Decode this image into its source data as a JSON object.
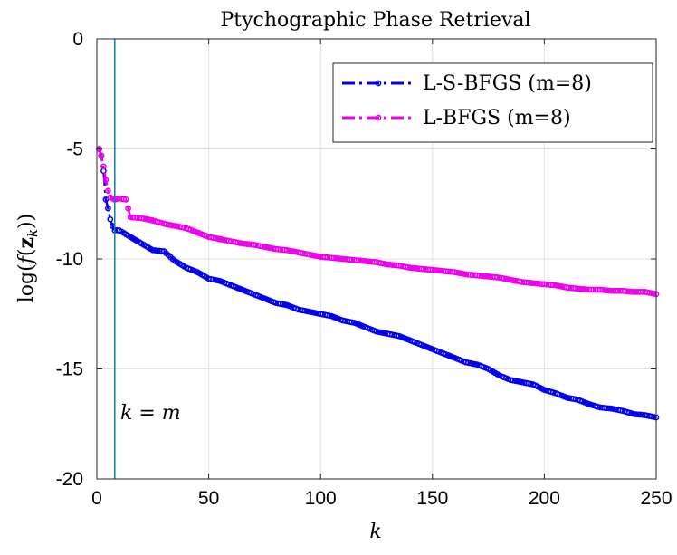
{
  "chart_data": {
    "type": "line",
    "title": "Ptychographic Phase Retrieval",
    "xlabel": "k",
    "ylabel_parts": [
      "log(",
      "f",
      "(",
      "z",
      "k",
      "))"
    ],
    "xlim": [
      0,
      250
    ],
    "ylim": [
      -20,
      0
    ],
    "x_ticks": [
      {
        "value": 0,
        "label": "0"
      },
      {
        "value": 50,
        "label": "50"
      },
      {
        "value": 100,
        "label": "100"
      },
      {
        "value": 150,
        "label": "150"
      },
      {
        "value": 200,
        "label": "200"
      },
      {
        "value": 250,
        "label": "250"
      }
    ],
    "y_ticks": [
      {
        "value": 0,
        "label": "0"
      },
      {
        "value": -5,
        "label": "-5"
      },
      {
        "value": -10,
        "label": "-10"
      },
      {
        "value": -15,
        "label": "-15"
      },
      {
        "value": -20,
        "label": "-20"
      }
    ],
    "grid": true,
    "legend_position": "top-right",
    "vertical_line": {
      "x": 8,
      "label_parts": [
        "k",
        " = ",
        "m"
      ],
      "color": "#0f7e9e"
    },
    "series": [
      {
        "name": "L-S-BFGS (m=8)",
        "color": "#0000ee",
        "style": "dash-dot with circle markers",
        "points": [
          [
            1,
            -5.0
          ],
          [
            2,
            -5.3
          ],
          [
            3,
            -6.0
          ],
          [
            4,
            -7.3
          ],
          [
            5,
            -7.7
          ],
          [
            6,
            -8.2
          ],
          [
            7,
            -8.5
          ],
          [
            8,
            -8.7
          ],
          [
            10,
            -8.7
          ],
          [
            15,
            -9.0
          ],
          [
            20,
            -9.3
          ],
          [
            25,
            -9.6
          ],
          [
            30,
            -9.65
          ],
          [
            35,
            -10.1
          ],
          [
            40,
            -10.4
          ],
          [
            45,
            -10.6
          ],
          [
            50,
            -10.9
          ],
          [
            55,
            -11.0
          ],
          [
            60,
            -11.2
          ],
          [
            65,
            -11.4
          ],
          [
            70,
            -11.6
          ],
          [
            75,
            -11.8
          ],
          [
            80,
            -12.0
          ],
          [
            85,
            -12.1
          ],
          [
            90,
            -12.3
          ],
          [
            95,
            -12.4
          ],
          [
            100,
            -12.5
          ],
          [
            105,
            -12.6
          ],
          [
            110,
            -12.8
          ],
          [
            115,
            -12.9
          ],
          [
            120,
            -13.1
          ],
          [
            125,
            -13.3
          ],
          [
            130,
            -13.4
          ],
          [
            135,
            -13.5
          ],
          [
            140,
            -13.7
          ],
          [
            145,
            -13.9
          ],
          [
            150,
            -14.1
          ],
          [
            155,
            -14.3
          ],
          [
            160,
            -14.5
          ],
          [
            165,
            -14.7
          ],
          [
            170,
            -14.8
          ],
          [
            175,
            -15.0
          ],
          [
            180,
            -15.3
          ],
          [
            185,
            -15.5
          ],
          [
            190,
            -15.6
          ],
          [
            195,
            -15.7
          ],
          [
            200,
            -15.95
          ],
          [
            205,
            -16.1
          ],
          [
            210,
            -16.3
          ],
          [
            215,
            -16.4
          ],
          [
            220,
            -16.6
          ],
          [
            225,
            -16.75
          ],
          [
            230,
            -16.8
          ],
          [
            235,
            -16.9
          ],
          [
            240,
            -17.05
          ],
          [
            245,
            -17.1
          ],
          [
            250,
            -17.2
          ]
        ]
      },
      {
        "name": "L-BFGS (m=8)",
        "color": "#ee00ee",
        "style": "dash-dot with circle markers",
        "points": [
          [
            1,
            -5.0
          ],
          [
            2,
            -5.3
          ],
          [
            3,
            -5.8
          ],
          [
            4,
            -6.4
          ],
          [
            5,
            -6.9
          ],
          [
            6,
            -7.2
          ],
          [
            8,
            -7.3
          ],
          [
            10,
            -7.25
          ],
          [
            13,
            -7.3
          ],
          [
            15,
            -8.1
          ],
          [
            20,
            -8.15
          ],
          [
            25,
            -8.25
          ],
          [
            30,
            -8.4
          ],
          [
            35,
            -8.5
          ],
          [
            40,
            -8.6
          ],
          [
            45,
            -8.8
          ],
          [
            50,
            -9.0
          ],
          [
            55,
            -9.1
          ],
          [
            60,
            -9.2
          ],
          [
            65,
            -9.3
          ],
          [
            70,
            -9.35
          ],
          [
            75,
            -9.45
          ],
          [
            80,
            -9.55
          ],
          [
            85,
            -9.6
          ],
          [
            90,
            -9.7
          ],
          [
            95,
            -9.8
          ],
          [
            100,
            -9.9
          ],
          [
            105,
            -9.95
          ],
          [
            110,
            -10.0
          ],
          [
            115,
            -10.05
          ],
          [
            120,
            -10.1
          ],
          [
            125,
            -10.15
          ],
          [
            130,
            -10.25
          ],
          [
            135,
            -10.3
          ],
          [
            140,
            -10.4
          ],
          [
            145,
            -10.45
          ],
          [
            150,
            -10.5
          ],
          [
            155,
            -10.55
          ],
          [
            160,
            -10.6
          ],
          [
            165,
            -10.7
          ],
          [
            170,
            -10.75
          ],
          [
            175,
            -10.8
          ],
          [
            180,
            -10.85
          ],
          [
            185,
            -10.95
          ],
          [
            190,
            -11.05
          ],
          [
            195,
            -11.1
          ],
          [
            200,
            -11.15
          ],
          [
            205,
            -11.2
          ],
          [
            210,
            -11.3
          ],
          [
            215,
            -11.35
          ],
          [
            220,
            -11.4
          ],
          [
            225,
            -11.4
          ],
          [
            230,
            -11.45
          ],
          [
            235,
            -11.45
          ],
          [
            240,
            -11.5
          ],
          [
            245,
            -11.5
          ],
          [
            250,
            -11.6
          ]
        ]
      }
    ]
  }
}
